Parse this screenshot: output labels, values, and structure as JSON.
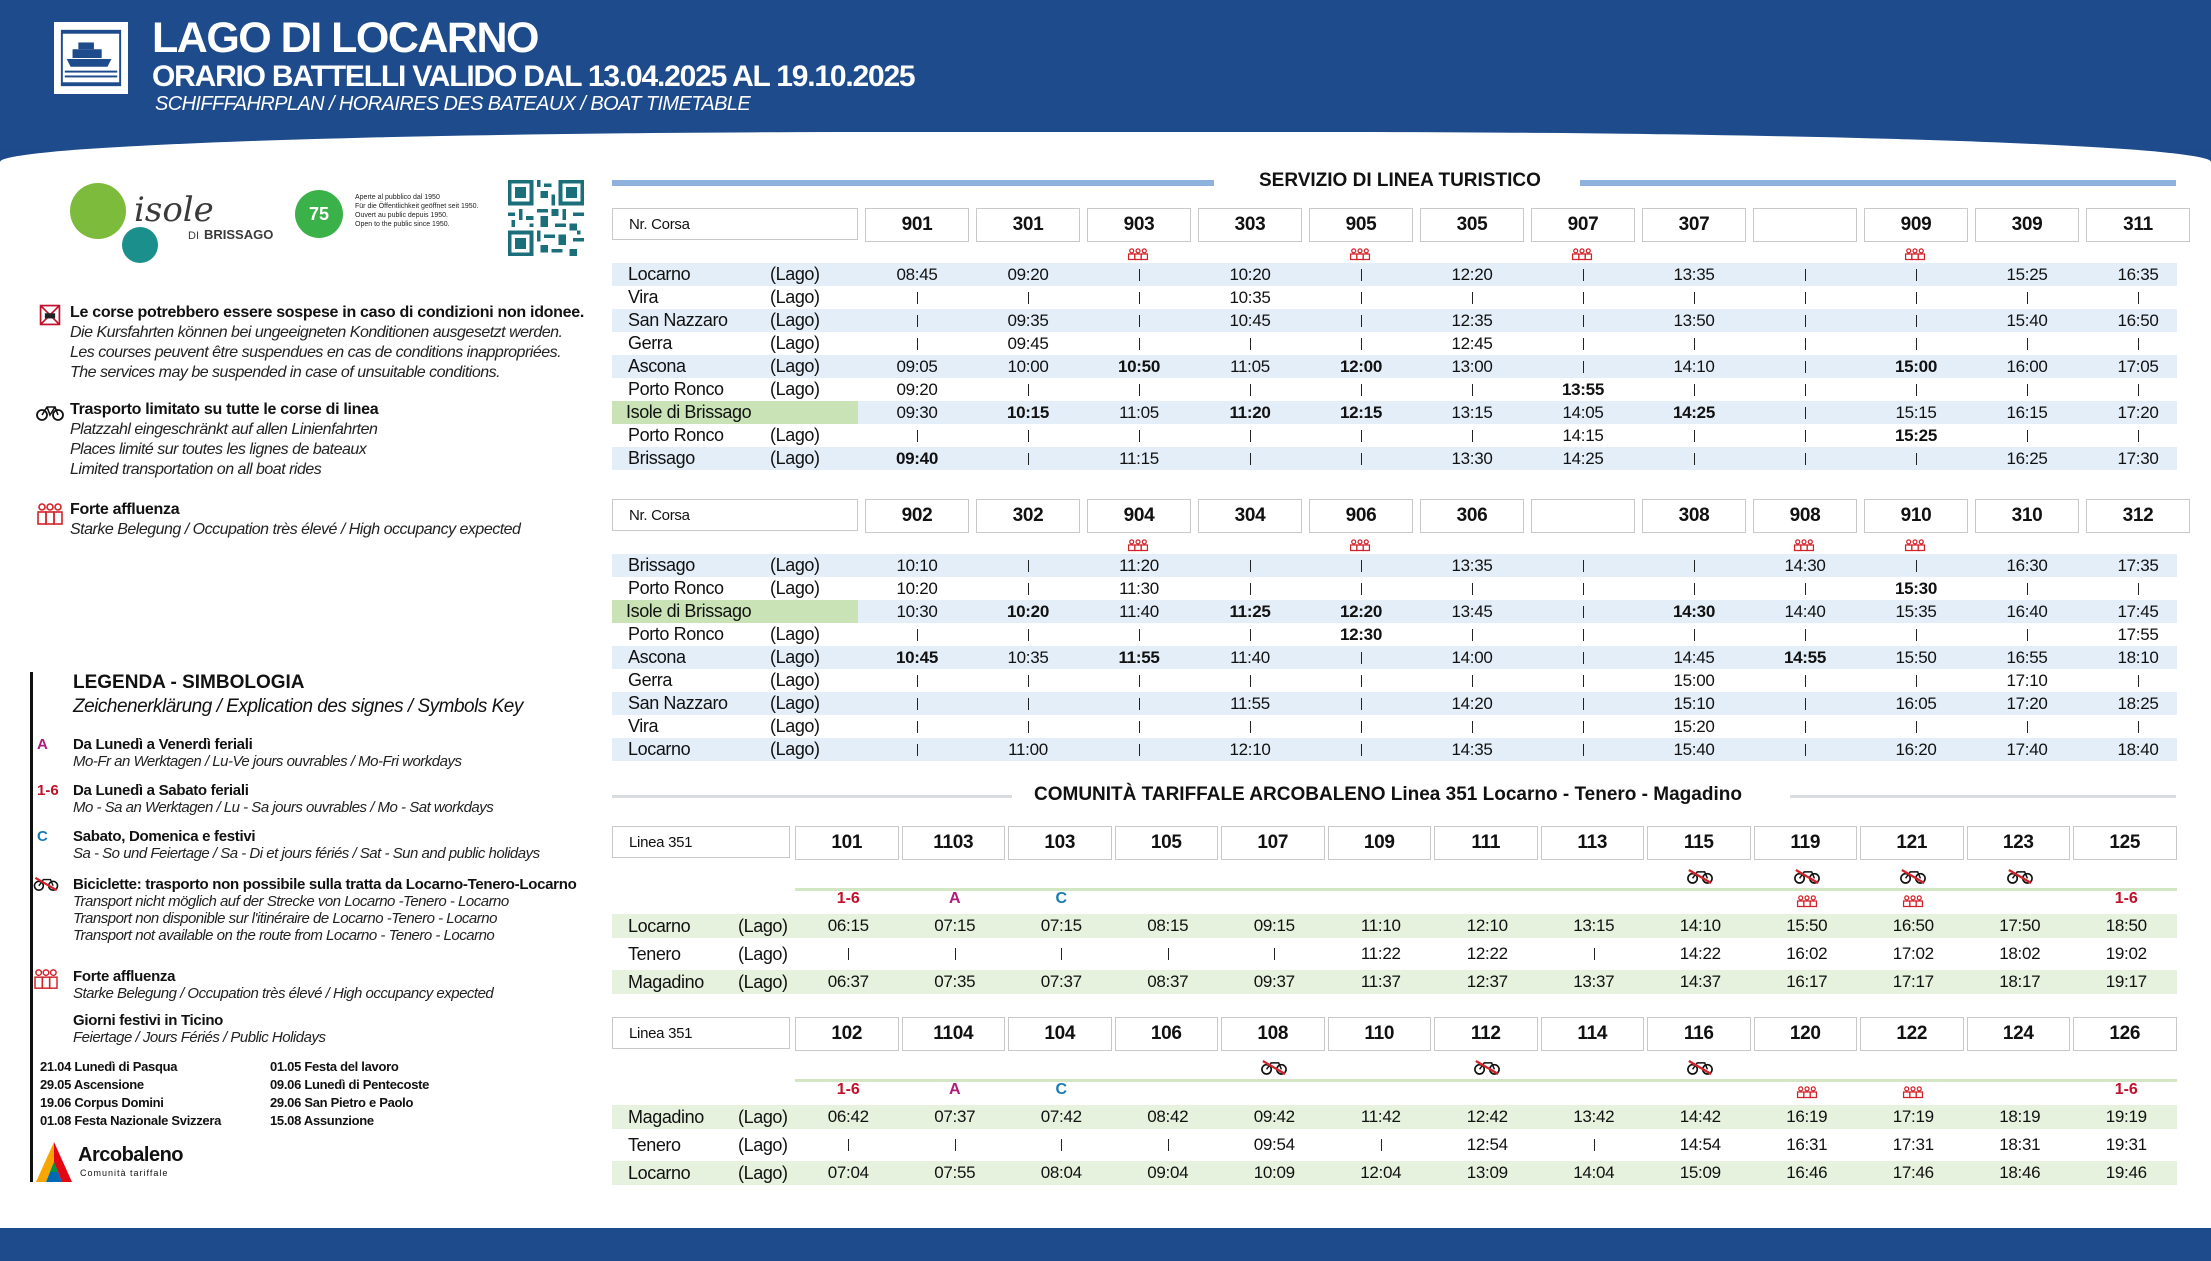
{
  "header": {
    "title": "LAGO DI LOCARNO",
    "subtitle": "ORARIO BATTELLI VALIDO DAL 13.04.2025 AL 19.10.2025",
    "subtitle2": "SCHIFFFAHRPLAN / HORAIRES DES BATEAUX / BOAT TIMETABLE"
  },
  "brand": {
    "name": "isole",
    "sub": "DI BRISSAGO",
    "anniv": "75",
    "anniv_text": [
      "Aperte al pubblico dal 1950",
      "Für die Öffentlichkeit geöffnet seit 1950.",
      "Ouvert au public depuis 1950.",
      "Open to the public since 1950."
    ]
  },
  "notes": [
    {
      "bold": "Le corse potrebbero essere sospese in caso di condizioni non idonee.",
      "lines": [
        "Die Kursfahrten können bei ungeeigneten Konditionen ausgesetzt werden.",
        "Les courses peuvent être suspendues en cas de conditions inappropriées.",
        "The services may be suspended in case of unsuitable conditions."
      ]
    },
    {
      "bold": "Trasporto limitato su tutte le corse di linea",
      "lines": [
        "Platzzahl eingeschränkt auf allen Linienfahrten",
        "Places limité sur toutes les lignes de bateaux",
        "Limited transportation on all boat rides"
      ]
    },
    {
      "bold": "Forte affluenza",
      "lines": [
        "Starke Belegung / Occupation très élevé /  High occupancy expected"
      ]
    }
  ],
  "legend": {
    "title": "LEGENDA - SIMBOLOGIA",
    "subtitle": "Zeichenerklärung / Explication des signes / Symbols Key",
    "items": [
      {
        "sym": "A",
        "bold": "Da Lunedì a Venerdì feriali",
        "text": "Mo-Fr an Werktagen / Lu-Ve jours ouvrables / Mo-Fri workdays"
      },
      {
        "sym": "1-6",
        "bold": "Da Lunedì a Sabato feriali",
        "text": "Mo - Sa an Werktagen / Lu - Sa jours ouvrables / Mo - Sat workdays"
      },
      {
        "sym": "C",
        "bold": "Sabato, Domenica e festivi",
        "text": "Sa - So und Feiertage / Sa - Di et jours fériés / Sat - Sun and public holidays"
      },
      {
        "sym": "",
        "bold": "Biciclette: trasporto non possibile sulla tratta da Locarno-Tenero-Locarno",
        "lines": [
          "Transport nicht möglich auf der Strecke von Locarno -Tenero - Locarno",
          "Transport non disponible sur l'itinéraire de Locarno -Tenero - Locarno",
          "Transport not available on the route from Locarno - Tenero - Locarno"
        ]
      },
      {
        "sym": "",
        "bold": "Forte affluenza",
        "text": "Starke Belegung / Occupation très élevé /  High occupancy expected"
      },
      {
        "sym": "",
        "bold": "Giorni festivi in Ticino",
        "text": "Feiertage / Jours Fériés / Public Holidays"
      }
    ],
    "holidays_left": [
      "21.04 Lunedì di Pasqua",
      "29.05 Ascensione",
      "19.06 Corpus Domini",
      "01.08 Festa Nazionale Svizzera"
    ],
    "holidays_right": [
      "01.05 Festa del lavoro",
      "09.06 Lunedì di Pentecoste",
      "29.06 San Pietro e Paolo",
      "15.08 Assunzione"
    ]
  },
  "arcobaleno": {
    "name": "Arcobaleno",
    "sub": "Comunità tariffale"
  },
  "section1": {
    "title": "SERVIZIO DI LINEA TURISTICO"
  },
  "section2": {
    "title": "COMUNITÀ TARIFFALE ARCOBALENO Linea 351 Locarno - Tenero - Magadino"
  },
  "nr_label": "Nr. Corsa",
  "linea_label": "Linea 351",
  "lago": "(Lago)",
  "boat_out": {
    "courses": [
      "901",
      "301",
      "903",
      "303",
      "905",
      "305",
      "907",
      "307",
      "",
      "909",
      "309",
      "311"
    ],
    "occupancy": [
      false,
      false,
      true,
      false,
      true,
      false,
      true,
      false,
      false,
      true,
      false,
      false
    ],
    "stations": [
      "Locarno",
      "Vira",
      "San Nazzaro",
      "Gerra",
      "Ascona",
      "Porto Ronco",
      "Isole di Brissago",
      "Porto Ronco",
      "Brissago"
    ],
    "rows": [
      [
        "08:45",
        "09:20",
        "|",
        "10:20",
        "|",
        "12:20",
        "|",
        "13:35",
        "|",
        "|",
        "15:25",
        "16:35"
      ],
      [
        "|",
        "|",
        "|",
        "10:35",
        "|",
        "|",
        "|",
        "|",
        "|",
        "|",
        "|",
        "|"
      ],
      [
        "|",
        "09:35",
        "|",
        "10:45",
        "|",
        "12:35",
        "|",
        "13:50",
        "|",
        "|",
        "15:40",
        "16:50"
      ],
      [
        "|",
        "09:45",
        "|",
        "|",
        "|",
        "12:45",
        "|",
        "|",
        "|",
        "|",
        "|",
        "|"
      ],
      [
        "09:05",
        "10:00",
        "*10:50",
        "11:05",
        "*12:00",
        "13:00",
        "|",
        "14:10",
        "|",
        "*15:00",
        "16:00",
        "17:05"
      ],
      [
        "09:20",
        "|",
        "|",
        "|",
        "|",
        "|",
        "*13:55",
        "|",
        "|",
        "|",
        "|",
        "|"
      ],
      [
        "09:30",
        "*10:15",
        "11:05",
        "*11:20",
        "*12:15",
        "13:15",
        "14:05",
        "*14:25",
        "|",
        "15:15",
        "16:15",
        "17:20"
      ],
      [
        "|",
        "|",
        "|",
        "|",
        "|",
        "|",
        "14:15",
        "|",
        "|",
        "*15:25",
        "|",
        "|"
      ],
      [
        "*09:40",
        "|",
        "11:15",
        "|",
        "|",
        "13:30",
        "14:25",
        "|",
        "|",
        "|",
        "16:25",
        "17:30"
      ]
    ]
  },
  "boat_ret": {
    "courses": [
      "902",
      "302",
      "904",
      "304",
      "906",
      "306",
      "",
      "308",
      "908",
      "910",
      "310",
      "312"
    ],
    "occupancy": [
      false,
      false,
      true,
      false,
      true,
      false,
      false,
      false,
      true,
      true,
      false,
      false
    ],
    "stations": [
      "Brissago",
      "Porto Ronco",
      "Isole di Brissago",
      "Porto Ronco",
      "Ascona",
      "Gerra",
      "San Nazzaro",
      "Vira",
      "Locarno"
    ],
    "rows": [
      [
        "10:10",
        "|",
        "11:20",
        "|",
        "|",
        "13:35",
        "|",
        "|",
        "14:30",
        "|",
        "16:30",
        "17:35"
      ],
      [
        "10:20",
        "|",
        "11:30",
        "|",
        "|",
        "|",
        "|",
        "|",
        "|",
        "*15:30",
        "|",
        "|"
      ],
      [
        "10:30",
        "*10:20",
        "11:40",
        "*11:25",
        "*12:20",
        "13:45",
        "|",
        "*14:30",
        "14:40",
        "15:35",
        "16:40",
        "17:45"
      ],
      [
        "|",
        "|",
        "|",
        "|",
        "*12:30",
        "|",
        "|",
        "|",
        "|",
        "|",
        "|",
        "17:55"
      ],
      [
        "*10:45",
        "10:35",
        "*11:55",
        "11:40",
        "|",
        "14:00",
        "|",
        "14:45",
        "*14:55",
        "15:50",
        "16:55",
        "18:10"
      ],
      [
        "|",
        "|",
        "|",
        "|",
        "|",
        "|",
        "|",
        "15:00",
        "|",
        "|",
        "17:10",
        "|"
      ],
      [
        "|",
        "|",
        "|",
        "11:55",
        "|",
        "14:20",
        "|",
        "15:10",
        "|",
        "16:05",
        "17:20",
        "18:25"
      ],
      [
        "|",
        "|",
        "|",
        "|",
        "|",
        "|",
        "|",
        "15:20",
        "|",
        "|",
        "|",
        "|"
      ],
      [
        "|",
        "11:00",
        "|",
        "12:10",
        "|",
        "14:35",
        "|",
        "15:40",
        "|",
        "16:20",
        "17:40",
        "18:40"
      ]
    ]
  },
  "bus_out": {
    "courses": [
      "101",
      "1103",
      "103",
      "105",
      "107",
      "109",
      "111",
      "113",
      "115",
      "119",
      "121",
      "123",
      "125"
    ],
    "bike": [
      false,
      false,
      false,
      false,
      false,
      false,
      false,
      false,
      true,
      true,
      true,
      true,
      false
    ],
    "marks": [
      "1-6",
      "A",
      "C",
      "",
      "",
      "",
      "",
      "",
      "",
      "occ",
      "occ",
      "",
      "1-6"
    ],
    "stations": [
      "Locarno",
      "Tenero",
      "Magadino"
    ],
    "rows": [
      [
        "06:15",
        "07:15",
        "07:15",
        "08:15",
        "09:15",
        "11:10",
        "12:10",
        "13:15",
        "14:10",
        "15:50",
        "16:50",
        "17:50",
        "18:50"
      ],
      [
        "|",
        "|",
        "|",
        "|",
        "|",
        "11:22",
        "12:22",
        "|",
        "14:22",
        "16:02",
        "17:02",
        "18:02",
        "19:02"
      ],
      [
        "06:37",
        "07:35",
        "07:37",
        "08:37",
        "09:37",
        "11:37",
        "12:37",
        "13:37",
        "14:37",
        "16:17",
        "17:17",
        "18:17",
        "19:17"
      ]
    ]
  },
  "bus_ret": {
    "courses": [
      "102",
      "1104",
      "104",
      "106",
      "108",
      "110",
      "112",
      "114",
      "116",
      "120",
      "122",
      "124",
      "126"
    ],
    "bike": [
      false,
      false,
      false,
      false,
      true,
      false,
      true,
      false,
      true,
      false,
      false,
      false,
      false
    ],
    "marks": [
      "1-6",
      "A",
      "C",
      "",
      "",
      "",
      "",
      "",
      "",
      "occ",
      "occ",
      "",
      "1-6"
    ],
    "stations": [
      "Magadino",
      "Tenero",
      "Locarno"
    ],
    "rows": [
      [
        "06:42",
        "07:37",
        "07:42",
        "08:42",
        "09:42",
        "11:42",
        "12:42",
        "13:42",
        "14:42",
        "16:19",
        "17:19",
        "18:19",
        "19:19"
      ],
      [
        "|",
        "|",
        "|",
        "|",
        "09:54",
        "|",
        "12:54",
        "|",
        "14:54",
        "16:31",
        "17:31",
        "18:31",
        "19:31"
      ],
      [
        "07:04",
        "07:55",
        "08:04",
        "09:04",
        "10:09",
        "12:04",
        "13:09",
        "14:04",
        "15:09",
        "16:46",
        "17:46",
        "18:46",
        "19:46"
      ]
    ]
  },
  "colors": {
    "brand_blue": "#1d4b8c",
    "row_blue": "#e4eef8",
    "row_green": "#e6f1de",
    "highlight_green": "#c9e3b6",
    "occupancy_red": "#d2232a",
    "mark_magenta": "#b01a7a",
    "mark_cyan": "#1a7ab0"
  }
}
